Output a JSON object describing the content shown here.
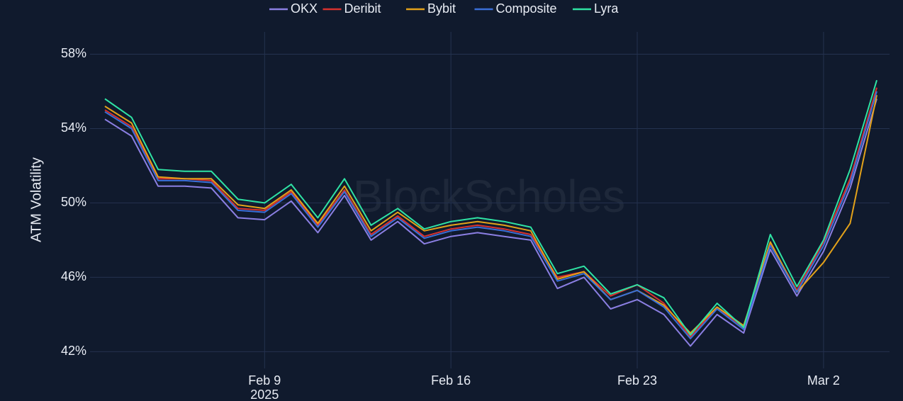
{
  "chart_data": {
    "type": "line",
    "y_axis_label": "ATM Volatility",
    "watermark": "BlockScholes",
    "x_year_label": "2025",
    "x": [
      "2025-02-03",
      "2025-02-04",
      "2025-02-05",
      "2025-02-06",
      "2025-02-07",
      "2025-02-08",
      "2025-02-09",
      "2025-02-10",
      "2025-02-11",
      "2025-02-12",
      "2025-02-13",
      "2025-02-14",
      "2025-02-15",
      "2025-02-16",
      "2025-02-17",
      "2025-02-18",
      "2025-02-19",
      "2025-02-20",
      "2025-02-21",
      "2025-02-22",
      "2025-02-23",
      "2025-02-24",
      "2025-02-25",
      "2025-02-26",
      "2025-02-27",
      "2025-02-28",
      "2025-03-01",
      "2025-03-02",
      "2025-03-03",
      "2025-03-04"
    ],
    "series": [
      {
        "name": "OKX",
        "color": "#8b7fe3",
        "values": [
          54.5,
          53.6,
          50.9,
          50.9,
          50.8,
          49.2,
          49.1,
          50.1,
          48.4,
          50.4,
          48.0,
          49.0,
          47.8,
          48.2,
          48.4,
          48.2,
          48.0,
          45.4,
          46.0,
          44.3,
          44.8,
          44.0,
          42.3,
          44.0,
          43.0,
          47.5,
          45.0,
          47.4,
          50.8,
          55.6
        ]
      },
      {
        "name": "Deribit",
        "color": "#d8322e",
        "values": [
          55.0,
          54.1,
          51.3,
          51.3,
          51.2,
          49.7,
          49.6,
          50.6,
          48.8,
          50.7,
          48.3,
          49.3,
          48.2,
          48.6,
          48.8,
          48.6,
          48.3,
          46.0,
          46.3,
          45.0,
          45.6,
          44.6,
          42.8,
          44.4,
          43.3,
          47.8,
          45.3,
          47.9,
          51.3,
          56.2
        ]
      },
      {
        "name": "Bybit",
        "color": "#e3a21a",
        "values": [
          55.2,
          54.3,
          51.4,
          51.3,
          51.3,
          49.9,
          49.7,
          50.7,
          48.9,
          50.9,
          48.5,
          49.5,
          48.5,
          48.8,
          49.0,
          48.8,
          48.5,
          45.9,
          46.3,
          44.8,
          45.3,
          44.5,
          43.0,
          44.4,
          43.4,
          47.9,
          45.2,
          46.8,
          48.9,
          55.8
        ]
      },
      {
        "name": "Composite",
        "color": "#3a6fd8",
        "values": [
          54.9,
          54.0,
          51.2,
          51.2,
          51.1,
          49.6,
          49.5,
          50.5,
          48.7,
          50.6,
          48.2,
          49.2,
          48.1,
          48.5,
          48.7,
          48.5,
          48.2,
          45.8,
          46.2,
          44.8,
          45.3,
          44.4,
          42.7,
          44.3,
          43.2,
          47.7,
          45.2,
          47.7,
          51.1,
          56.0
        ]
      },
      {
        "name": "Lyra",
        "color": "#2fe3a4",
        "values": [
          55.6,
          54.6,
          51.8,
          51.7,
          51.7,
          50.2,
          50.0,
          51.0,
          49.2,
          51.3,
          48.8,
          49.7,
          48.6,
          49.0,
          49.2,
          49.0,
          48.7,
          46.2,
          46.6,
          45.1,
          45.6,
          44.9,
          42.9,
          44.6,
          43.3,
          48.3,
          45.5,
          48.0,
          51.8,
          56.6
        ]
      }
    ],
    "xlim": [
      "2025-02-03",
      "2025-03-04"
    ],
    "xticks": [
      {
        "value": "2025-02-09",
        "label": "Feb 9"
      },
      {
        "value": "2025-02-16",
        "label": "Feb 16"
      },
      {
        "value": "2025-02-23",
        "label": "Feb 23"
      },
      {
        "value": "2025-03-02",
        "label": "Mar 2"
      }
    ],
    "ylim": [
      41.1,
      59.2
    ],
    "yticks": [
      {
        "value": 42,
        "label": "42%"
      },
      {
        "value": 46,
        "label": "46%"
      },
      {
        "value": 50,
        "label": "50%"
      },
      {
        "value": 54,
        "label": "54%"
      },
      {
        "value": 58,
        "label": "58%"
      }
    ],
    "grid": true,
    "legend": "top"
  }
}
